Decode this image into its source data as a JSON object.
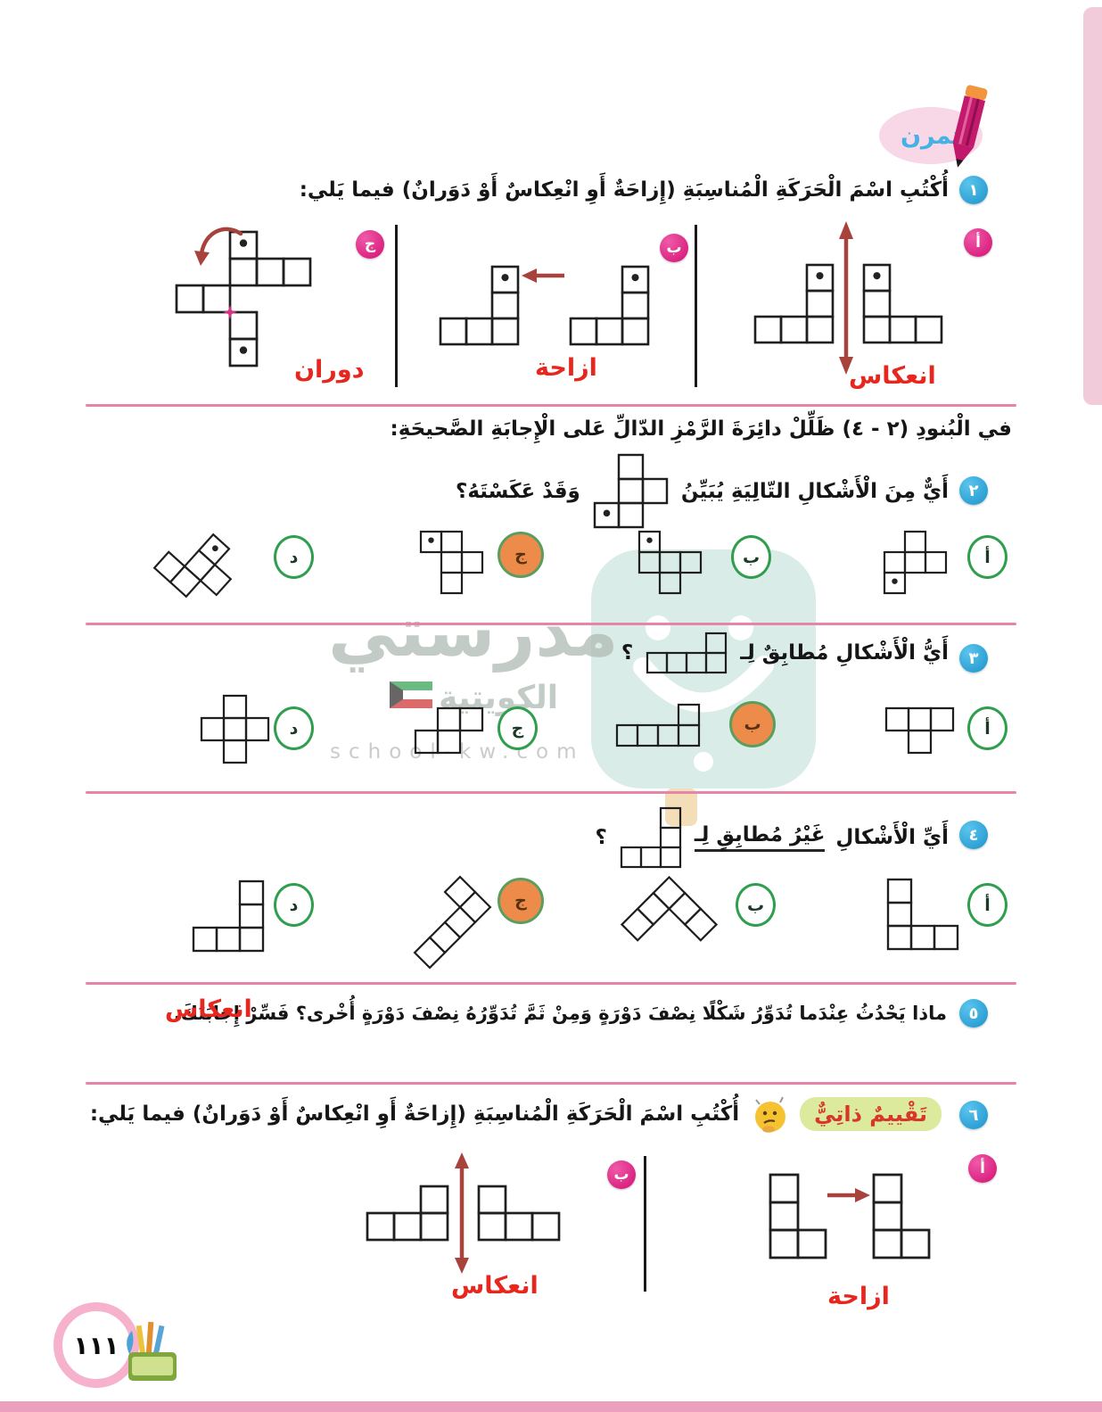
{
  "page": {
    "number_arabic": "١١١"
  },
  "header": {
    "practice_label": "تمرن"
  },
  "q1": {
    "number": "١",
    "text": "أُكْتُبِ اسْمَ الْحَرَكَةِ الْمُناسِبَةِ (إِزاحَةٌ أَوِ انْعِكاسٌ أَوْ دَوَرانٌ) فيما يَلي:",
    "items": [
      {
        "label": "أ",
        "answer": "انعكاس"
      },
      {
        "label": "ب",
        "answer": "ازاحة"
      },
      {
        "label": "ج",
        "answer": "دوران"
      }
    ]
  },
  "instruction": "في الْبُنودِ (٢ - ٤) ظَلِّلْ دائِرَةَ الرَّمْزِ الدّالِّ عَلى الْإِجابَةِ الصَّحيحَةِ:",
  "q2": {
    "number": "٢",
    "text_before": "أَيٌّ مِنَ الْأَشْكالِ التّالِيَةِ يُبَيِّنُ",
    "text_after": "وَقَدْ عَكَسْتَهُ؟",
    "options": [
      {
        "label": "أ",
        "selected": false
      },
      {
        "label": "ب",
        "selected": false
      },
      {
        "label": "ج",
        "selected": true
      },
      {
        "label": "د",
        "selected": false
      }
    ]
  },
  "q3": {
    "number": "٣",
    "text_before": "أَيُّ الْأَشْكالِ مُطابِقٌ لِـ",
    "text_after": "؟",
    "options": [
      {
        "label": "أ",
        "selected": false
      },
      {
        "label": "ب",
        "selected": true
      },
      {
        "label": "ج",
        "selected": false
      },
      {
        "label": "د",
        "selected": false
      }
    ]
  },
  "q4": {
    "number": "٤",
    "text_before": "أَيِّ الْأَشْكالِ",
    "text_underlined": "غَيْرُ مُطابِقٍ لِـ",
    "text_after": "؟",
    "options": [
      {
        "label": "أ",
        "selected": false
      },
      {
        "label": "ب",
        "selected": false
      },
      {
        "label": "ج",
        "selected": true
      },
      {
        "label": "د",
        "selected": false
      }
    ]
  },
  "q5": {
    "number": "٥",
    "text": "ماذا يَحْدُثُ عِنْدَما تُدَوِّرُ شَكْلًا نِصْفَ دَوْرَةٍ وَمِنْ ثَمَّ تُدَوِّرُهُ نِصْفَ دَوْرَةٍ أُخْرى؟ فَسِّرْ إِجابَتَكَ.",
    "answer": "انعكاس"
  },
  "q6": {
    "number": "٦",
    "badge": "تَقْييمٌ ذاتِيٌّ",
    "text": "أُكْتُبِ اسْمَ الْحَرَكَةِ الْمُناسِبَةِ (إِزاحَةٌ أَوِ انْعِكاسٌ أَوْ دَوَرانٌ) فيما يَلي:",
    "items": [
      {
        "label": "أ",
        "answer": "ازاحة"
      },
      {
        "label": "ب",
        "answer": "انعكاس"
      }
    ]
  },
  "watermark": {
    "brand": "مدرستي",
    "brand2": "الكويتية",
    "site": "school-kw.com"
  },
  "colors": {
    "answer_red": "#e7261d",
    "arrow_red": "#a8423c",
    "divider_pink": "#e784aa",
    "option_green": "#2f9e4e",
    "selected_orange": "#ec8b4a",
    "item_magenta": "#d40f74",
    "question_blue": "#1b93cc"
  },
  "shapes": {
    "q1_a_left": {
      "cells": [
        [
          0,
          2
        ],
        [
          1,
          2
        ],
        [
          2,
          0
        ],
        [
          2,
          1
        ],
        [
          2,
          2
        ]
      ],
      "dots": [
        [
          0,
          2
        ]
      ]
    },
    "q1_a_right": {
      "cells": [
        [
          0,
          0
        ],
        [
          1,
          0
        ],
        [
          2,
          0
        ],
        [
          2,
          1
        ],
        [
          2,
          2
        ]
      ],
      "dots": [
        [
          0,
          0
        ]
      ]
    },
    "q1_b": {
      "cells": [
        [
          0,
          2
        ],
        [
          1,
          2
        ],
        [
          2,
          0
        ],
        [
          2,
          1
        ],
        [
          2,
          2
        ]
      ],
      "dots": [
        [
          0,
          2
        ]
      ]
    },
    "q1_c": {
      "cells": [
        [
          0,
          2
        ],
        [
          1,
          2
        ],
        [
          1,
          3
        ],
        [
          1,
          4
        ],
        [
          2,
          0
        ],
        [
          2,
          1
        ],
        [
          3,
          2
        ],
        [
          4,
          2
        ]
      ],
      "dots": [
        [
          0,
          2
        ],
        [
          4,
          2
        ]
      ],
      "star": [
        3,
        2
      ]
    },
    "q2_prompt": {
      "cells": [
        [
          0,
          1
        ],
        [
          1,
          1
        ],
        [
          1,
          2
        ],
        [
          2,
          0
        ],
        [
          2,
          1
        ]
      ],
      "dots": [
        [
          2,
          0
        ]
      ]
    },
    "q2_a": {
      "cells": [
        [
          0,
          1
        ],
        [
          1,
          0
        ],
        [
          1,
          1
        ],
        [
          1,
          2
        ],
        [
          2,
          0
        ]
      ],
      "dots": [
        [
          2,
          0
        ]
      ]
    },
    "q2_b": {
      "cells": [
        [
          0,
          0
        ],
        [
          1,
          0
        ],
        [
          1,
          1
        ],
        [
          1,
          2
        ],
        [
          2,
          1
        ]
      ],
      "dots": [
        [
          0,
          0
        ]
      ]
    },
    "q2_c": {
      "cells": [
        [
          0,
          0
        ],
        [
          0,
          1
        ],
        [
          1,
          1
        ],
        [
          1,
          2
        ],
        [
          2,
          1
        ]
      ],
      "dots": [
        [
          0,
          0
        ]
      ]
    },
    "q2_d": {
      "cells": [
        [
          0,
          1
        ],
        [
          1,
          1
        ],
        [
          1,
          2
        ],
        [
          2,
          0
        ],
        [
          2,
          1
        ]
      ],
      "dots": [
        [
          0,
          1
        ]
      ],
      "rotate": 42
    },
    "q3_prompt": {
      "cells": [
        [
          0,
          3
        ],
        [
          1,
          0
        ],
        [
          1,
          1
        ],
        [
          1,
          2
        ],
        [
          1,
          3
        ]
      ]
    },
    "q3_a": {
      "cells": [
        [
          0,
          0
        ],
        [
          0,
          1
        ],
        [
          0,
          2
        ],
        [
          1,
          1
        ]
      ]
    },
    "q3_b": {
      "cells": [
        [
          0,
          3
        ],
        [
          1,
          0
        ],
        [
          1,
          1
        ],
        [
          1,
          2
        ],
        [
          1,
          3
        ]
      ]
    },
    "q3_c": {
      "cells": [
        [
          0,
          1
        ],
        [
          0,
          2
        ],
        [
          1,
          0
        ],
        [
          1,
          1
        ]
      ]
    },
    "q3_d": {
      "cells": [
        [
          0,
          1
        ],
        [
          1,
          0
        ],
        [
          1,
          1
        ],
        [
          1,
          2
        ],
        [
          2,
          1
        ]
      ]
    },
    "q4_prompt": {
      "cells": [
        [
          0,
          2
        ],
        [
          1,
          2
        ],
        [
          2,
          0
        ],
        [
          2,
          1
        ],
        [
          2,
          2
        ]
      ]
    },
    "q4_a": {
      "cells": [
        [
          0,
          0
        ],
        [
          1,
          0
        ],
        [
          2,
          0
        ],
        [
          2,
          1
        ],
        [
          2,
          2
        ]
      ]
    },
    "q4_b": {
      "cells": [
        [
          0,
          2
        ],
        [
          1,
          2
        ],
        [
          2,
          0
        ],
        [
          2,
          1
        ],
        [
          2,
          2
        ]
      ],
      "rotate": -135
    },
    "q4_c": {
      "cells": [
        [
          0,
          0
        ],
        [
          0,
          1
        ],
        [
          1,
          1
        ],
        [
          2,
          1
        ],
        [
          3,
          1
        ]
      ],
      "rotate": 45
    },
    "q4_d": {
      "cells": [
        [
          0,
          2
        ],
        [
          1,
          2
        ],
        [
          2,
          0
        ],
        [
          2,
          1
        ],
        [
          2,
          2
        ]
      ]
    },
    "q6_a": {
      "cells": [
        [
          0,
          0
        ],
        [
          1,
          0
        ],
        [
          2,
          0
        ],
        [
          2,
          1
        ]
      ]
    },
    "q6_b_left": {
      "cells": [
        [
          0,
          2
        ],
        [
          1,
          0
        ],
        [
          1,
          1
        ],
        [
          1,
          2
        ]
      ]
    },
    "q6_b_right": {
      "cells": [
        [
          0,
          0
        ],
        [
          1,
          0
        ],
        [
          1,
          1
        ],
        [
          1,
          2
        ]
      ]
    }
  }
}
